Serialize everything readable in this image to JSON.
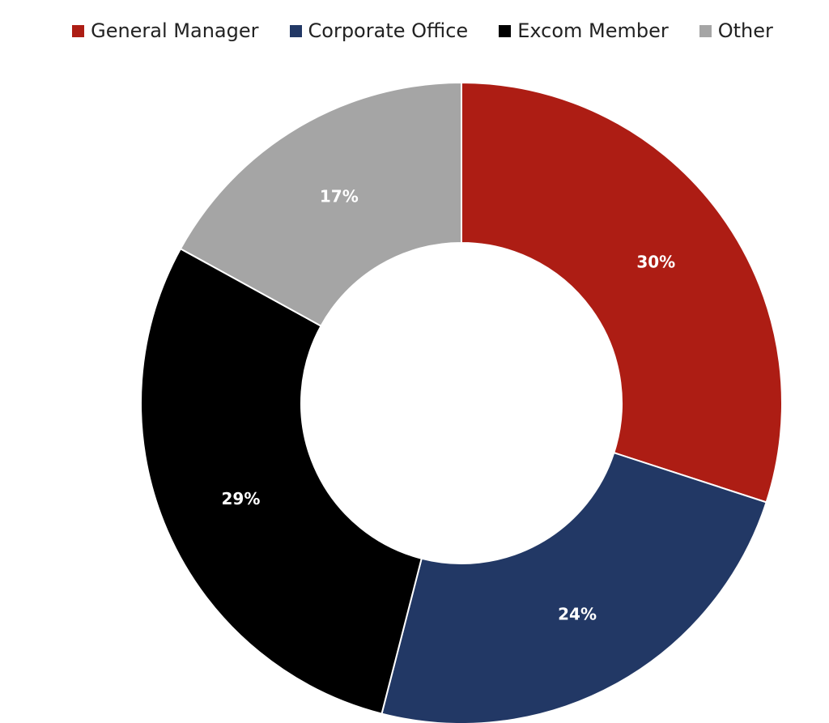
{
  "chart_data": {
    "type": "pie",
    "variant": "donut",
    "categories": [
      "General Manager",
      "Corporate Office",
      "Excom Member",
      "Other"
    ],
    "values": [
      30,
      24,
      29,
      17
    ],
    "labels": [
      "30%",
      "24%",
      "29%",
      "17%"
    ],
    "colors": [
      "#AD1D14",
      "#223865",
      "#000000",
      "#A5A5A5"
    ],
    "legend_position": "top",
    "start_angle": "12 o'clock",
    "direction": "clockwise"
  },
  "legend": {
    "items": [
      {
        "label": "General Manager",
        "color": "#AD1D14"
      },
      {
        "label": "Corporate Office",
        "color": "#223865"
      },
      {
        "label": "Excom Member",
        "color": "#000000"
      },
      {
        "label": "Other",
        "color": "#A5A5A5"
      }
    ]
  }
}
